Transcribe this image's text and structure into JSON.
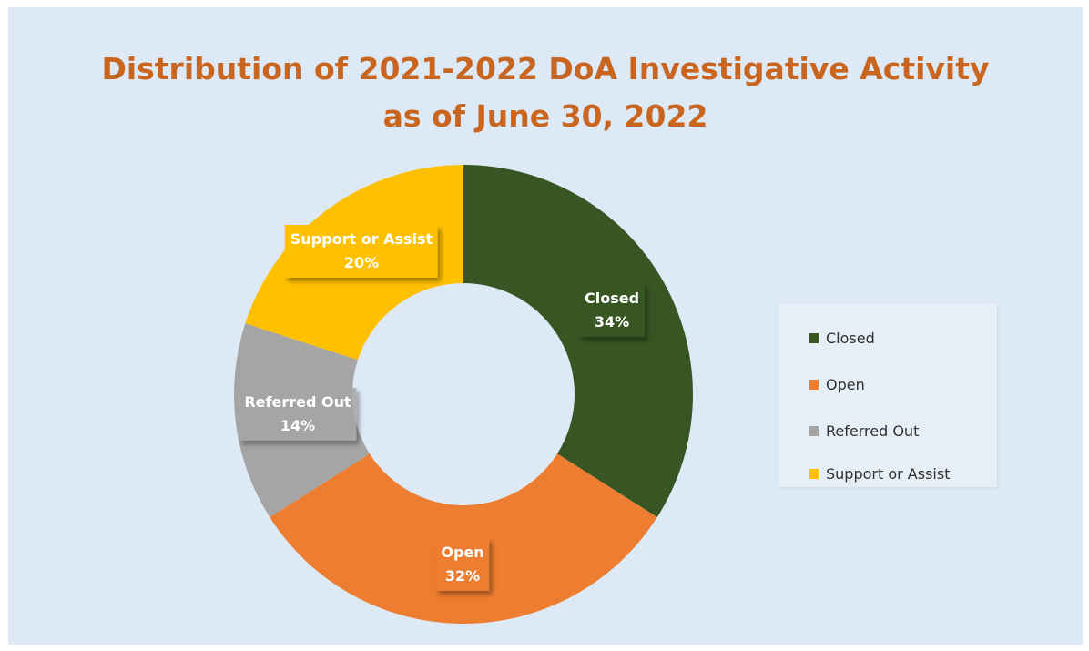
{
  "chart_data": {
    "type": "pie",
    "variant": "donut",
    "title": "Distribution of 2021-2022 DoA Investigative Activity",
    "subtitle": "as of June 30, 2022",
    "title_color": "#c9651f",
    "background_color": "#dde9f5",
    "categories": [
      "Closed",
      "Open",
      "Referred Out",
      "Support or Assist"
    ],
    "values": [
      34,
      32,
      14,
      20
    ],
    "unit": "%",
    "value_labels": [
      "34%",
      "32%",
      "14%",
      "20%"
    ],
    "colors": [
      "#375623",
      "#ed7d31",
      "#a5a5a5",
      "#ffc000"
    ],
    "legend": {
      "placement": "right",
      "items": [
        "Closed",
        "Open",
        "Referred Out",
        "Support or Assist"
      ]
    }
  }
}
